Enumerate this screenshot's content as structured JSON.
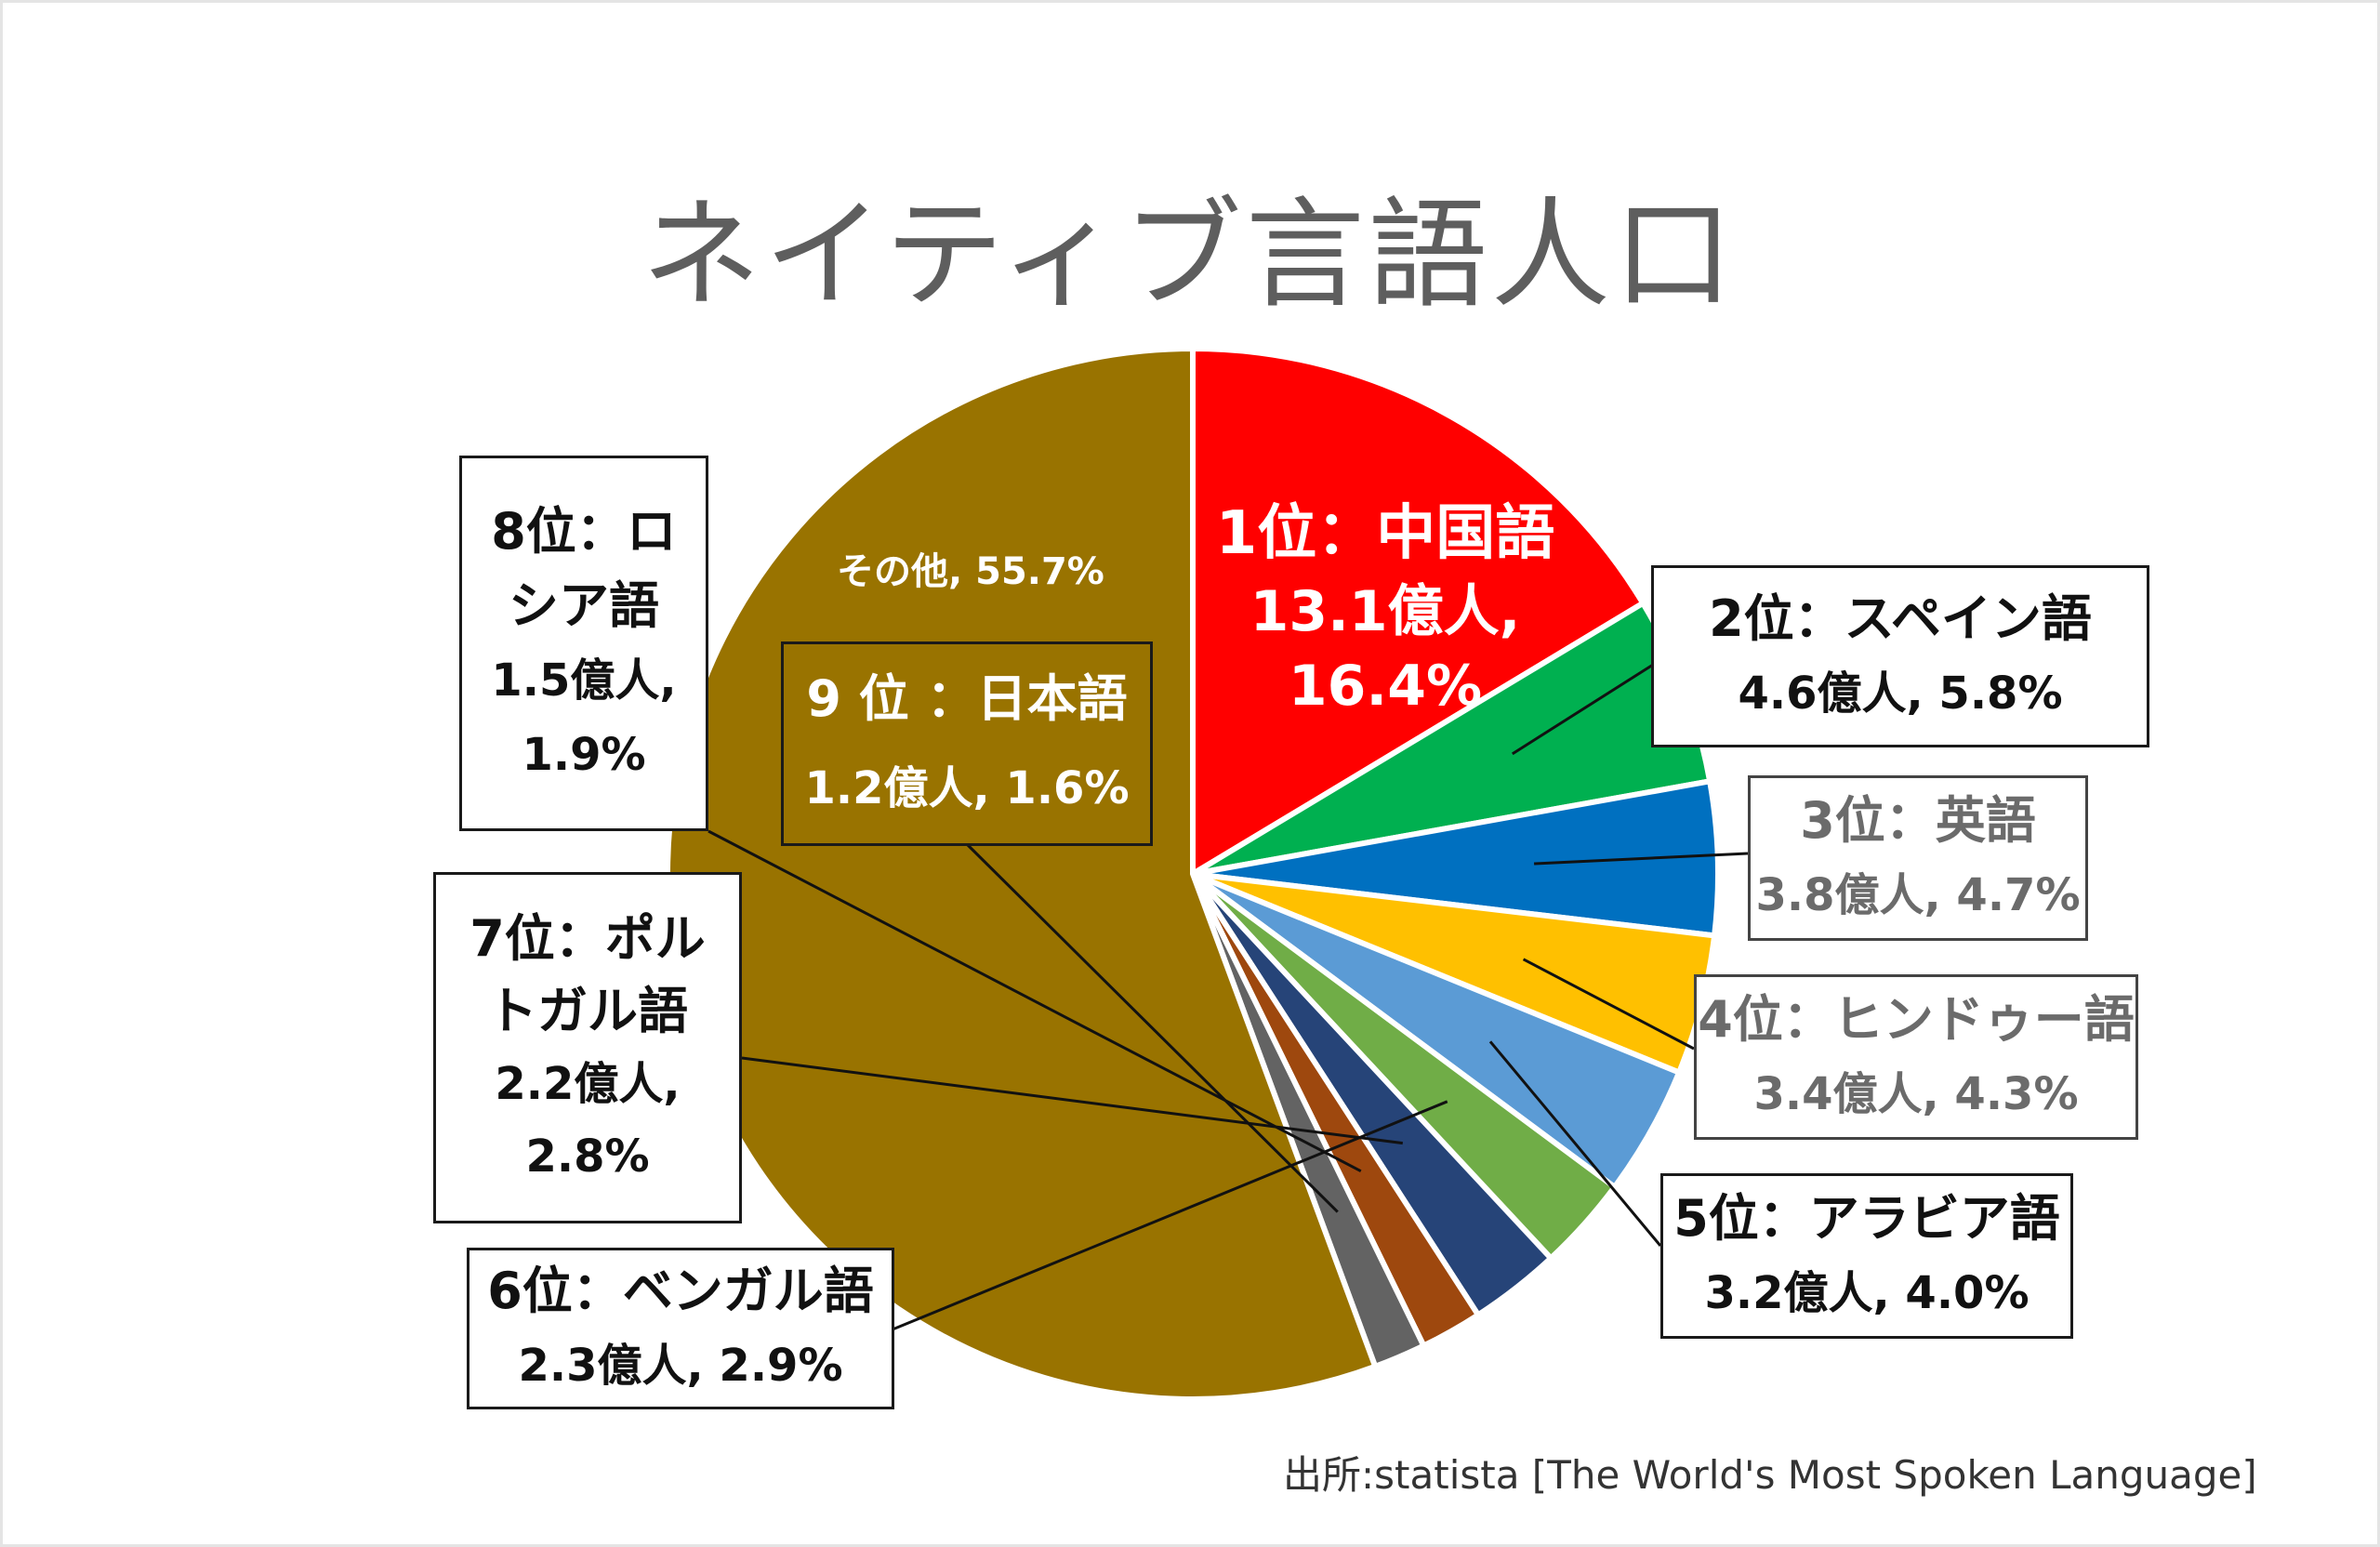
{
  "title": "ネイティブ言語人口",
  "source": "出所:statista [The World's Most Spoken Language]",
  "chart_data": {
    "type": "pie",
    "title": "ネイティブ言語人口",
    "unit": "億人",
    "slices": [
      {
        "rank": "1位",
        "name": "中国語",
        "value": 13.1,
        "percent": 16.4,
        "color": "#FF0000",
        "label_title": "1位：中国語",
        "label_value": "13.1億人, 16.4%"
      },
      {
        "rank": "2位",
        "name": "スペイン語",
        "value": 4.6,
        "percent": 5.8,
        "color": "#00B050",
        "label_title": "2位：スペイン語",
        "label_value": "4.6億人, 5.8%"
      },
      {
        "rank": "3位",
        "name": "英語",
        "value": 3.8,
        "percent": 4.7,
        "color": "#0070C0",
        "label_title": "3位：英語",
        "label_value": "3.8億人, 4.7%"
      },
      {
        "rank": "4位",
        "name": "ヒンドゥー語",
        "value": 3.4,
        "percent": 4.3,
        "color": "#FFC000",
        "label_title": "4位：ヒンドゥー語",
        "label_value": "3.4億人, 4.3%"
      },
      {
        "rank": "5位",
        "name": "アラビア語",
        "value": 3.2,
        "percent": 4.0,
        "color": "#5B9BD5",
        "label_title": "5位：アラビア語",
        "label_value": "3.2億人, 4.0%"
      },
      {
        "rank": "6位",
        "name": "ベンガル語",
        "value": 2.3,
        "percent": 2.9,
        "color": "#70AD47",
        "label_title": "6位：ベンガル語",
        "label_value": "2.3億人, 2.9%"
      },
      {
        "rank": "7位",
        "name": "ポルトガル語",
        "value": 2.2,
        "percent": 2.8,
        "color": "#264478",
        "label_title": "7位：ポルトガル語",
        "label_value": "2.2億人, 2.8%"
      },
      {
        "rank": "8位",
        "name": "ロシア語",
        "value": 1.5,
        "percent": 1.9,
        "color": "#9E480E",
        "label_title": "8位：ロシア語",
        "label_value": "1.5億人, 1.9%"
      },
      {
        "rank": "9位",
        "name": "日本語",
        "value": 1.2,
        "percent": 1.6,
        "color": "#636363",
        "label_title": "9 位 ：日本語",
        "label_value": "1.2億人, 1.6%"
      },
      {
        "rank": "",
        "name": "その他",
        "value": null,
        "percent": 55.7,
        "color": "#997300",
        "label_title": "その他, 55.7%",
        "label_value": ""
      }
    ]
  }
}
